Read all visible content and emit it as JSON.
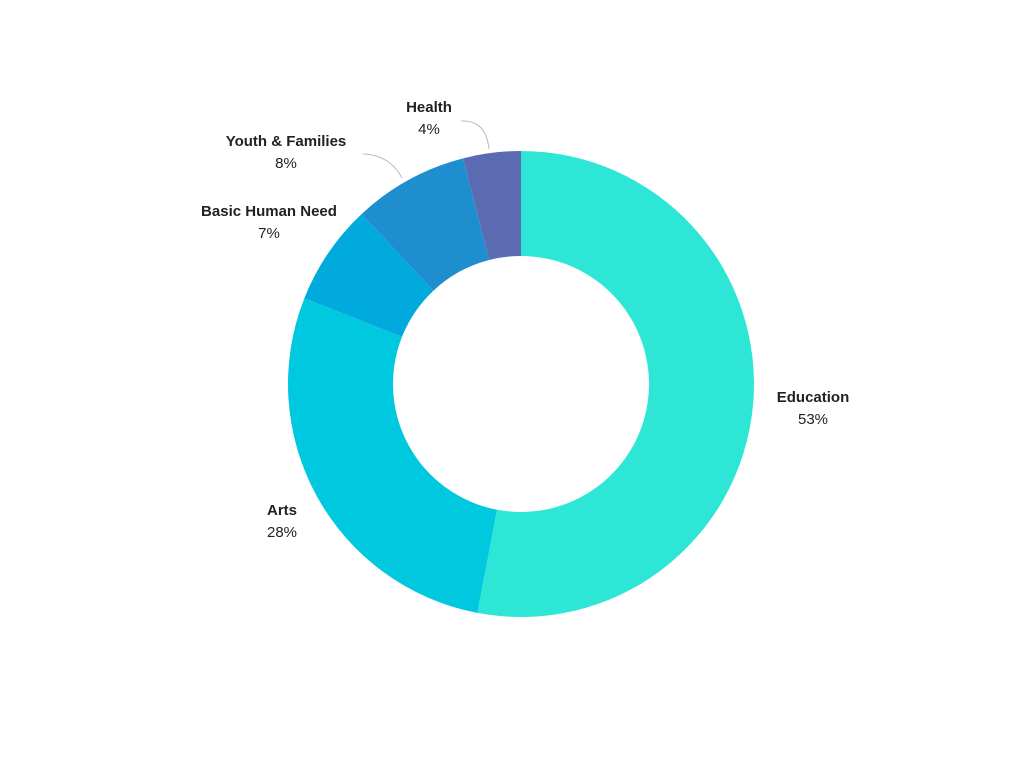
{
  "chart_data": {
    "type": "donut",
    "categories": [
      "Education",
      "Arts",
      "Basic Human Need",
      "Youth & Families",
      "Health"
    ],
    "values": [
      53,
      28,
      7,
      8,
      4
    ],
    "value_labels": [
      "53%",
      "28%",
      "7%",
      "8%",
      "4%"
    ],
    "colors": [
      "#2ee6d6",
      "#00c9df",
      "#00aadd",
      "#1f8ecf",
      "#5a6bb2"
    ]
  }
}
